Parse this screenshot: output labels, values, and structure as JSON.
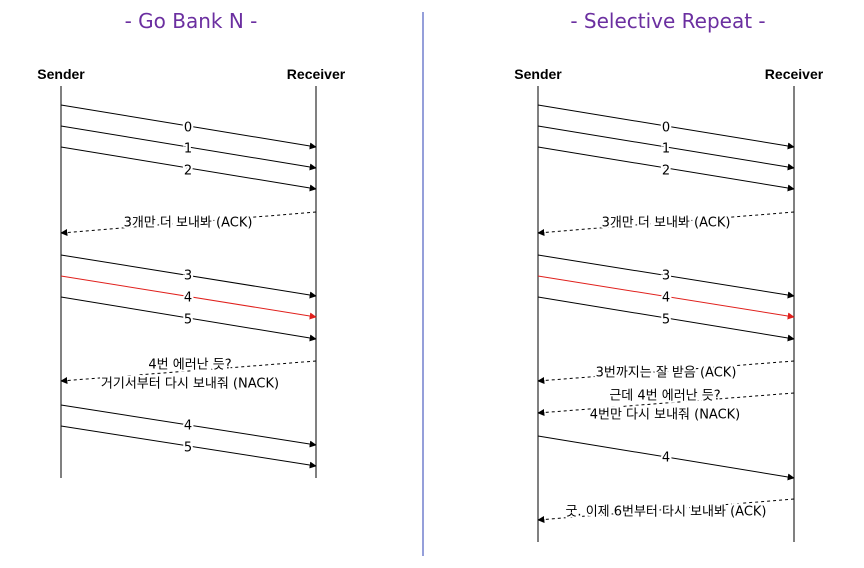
{
  "colors": {
    "title": "#6b2fa0",
    "divider": "#2b3fb5",
    "line": "#000000",
    "error": "#e0201c"
  },
  "panels": [
    {
      "title": "- Go Bank N -",
      "sender_label": "Sender",
      "receiver_label": "Receiver",
      "messages": [
        {
          "direction": "send",
          "label": "0",
          "style": "solid"
        },
        {
          "direction": "send",
          "label": "1",
          "style": "solid"
        },
        {
          "direction": "send",
          "label": "2",
          "style": "solid"
        },
        {
          "direction": "reply",
          "label": "3개만 더 보내봐 (ACK)",
          "style": "dashed"
        },
        {
          "direction": "send",
          "label": "3",
          "style": "solid"
        },
        {
          "direction": "send",
          "label": "4",
          "style": "solid",
          "error": true
        },
        {
          "direction": "send",
          "label": "5",
          "style": "solid"
        },
        {
          "direction": "reply",
          "label": "4번 에러난 듯?",
          "label2": "거기서부터 다시 보내줘 (NACK)",
          "style": "dashed"
        },
        {
          "direction": "send",
          "label": "4",
          "style": "solid"
        },
        {
          "direction": "send",
          "label": "5",
          "style": "solid"
        }
      ]
    },
    {
      "title": "- Selective Repeat -",
      "sender_label": "Sender",
      "receiver_label": "Receiver",
      "messages": [
        {
          "direction": "send",
          "label": "0",
          "style": "solid"
        },
        {
          "direction": "send",
          "label": "1",
          "style": "solid"
        },
        {
          "direction": "send",
          "label": "2",
          "style": "solid"
        },
        {
          "direction": "reply",
          "label": "3개만 더 보내봐 (ACK)",
          "style": "dashed"
        },
        {
          "direction": "send",
          "label": "3",
          "style": "solid"
        },
        {
          "direction": "send",
          "label": "4",
          "style": "solid",
          "error": true
        },
        {
          "direction": "send",
          "label": "5",
          "style": "solid"
        },
        {
          "direction": "reply",
          "label": "3번까지는 잘 받음 (ACK)",
          "style": "dashed"
        },
        {
          "direction": "reply",
          "label": "근데 4번 에러난 듯?",
          "label2": "4번만 다시 보내줘 (NACK)",
          "style": "dashed"
        },
        {
          "direction": "send",
          "label": "4",
          "style": "solid"
        },
        {
          "direction": "reply",
          "label": "굿. 이제 6번부터 다시 보내봐 (ACK)",
          "style": "dashed"
        }
      ]
    }
  ]
}
